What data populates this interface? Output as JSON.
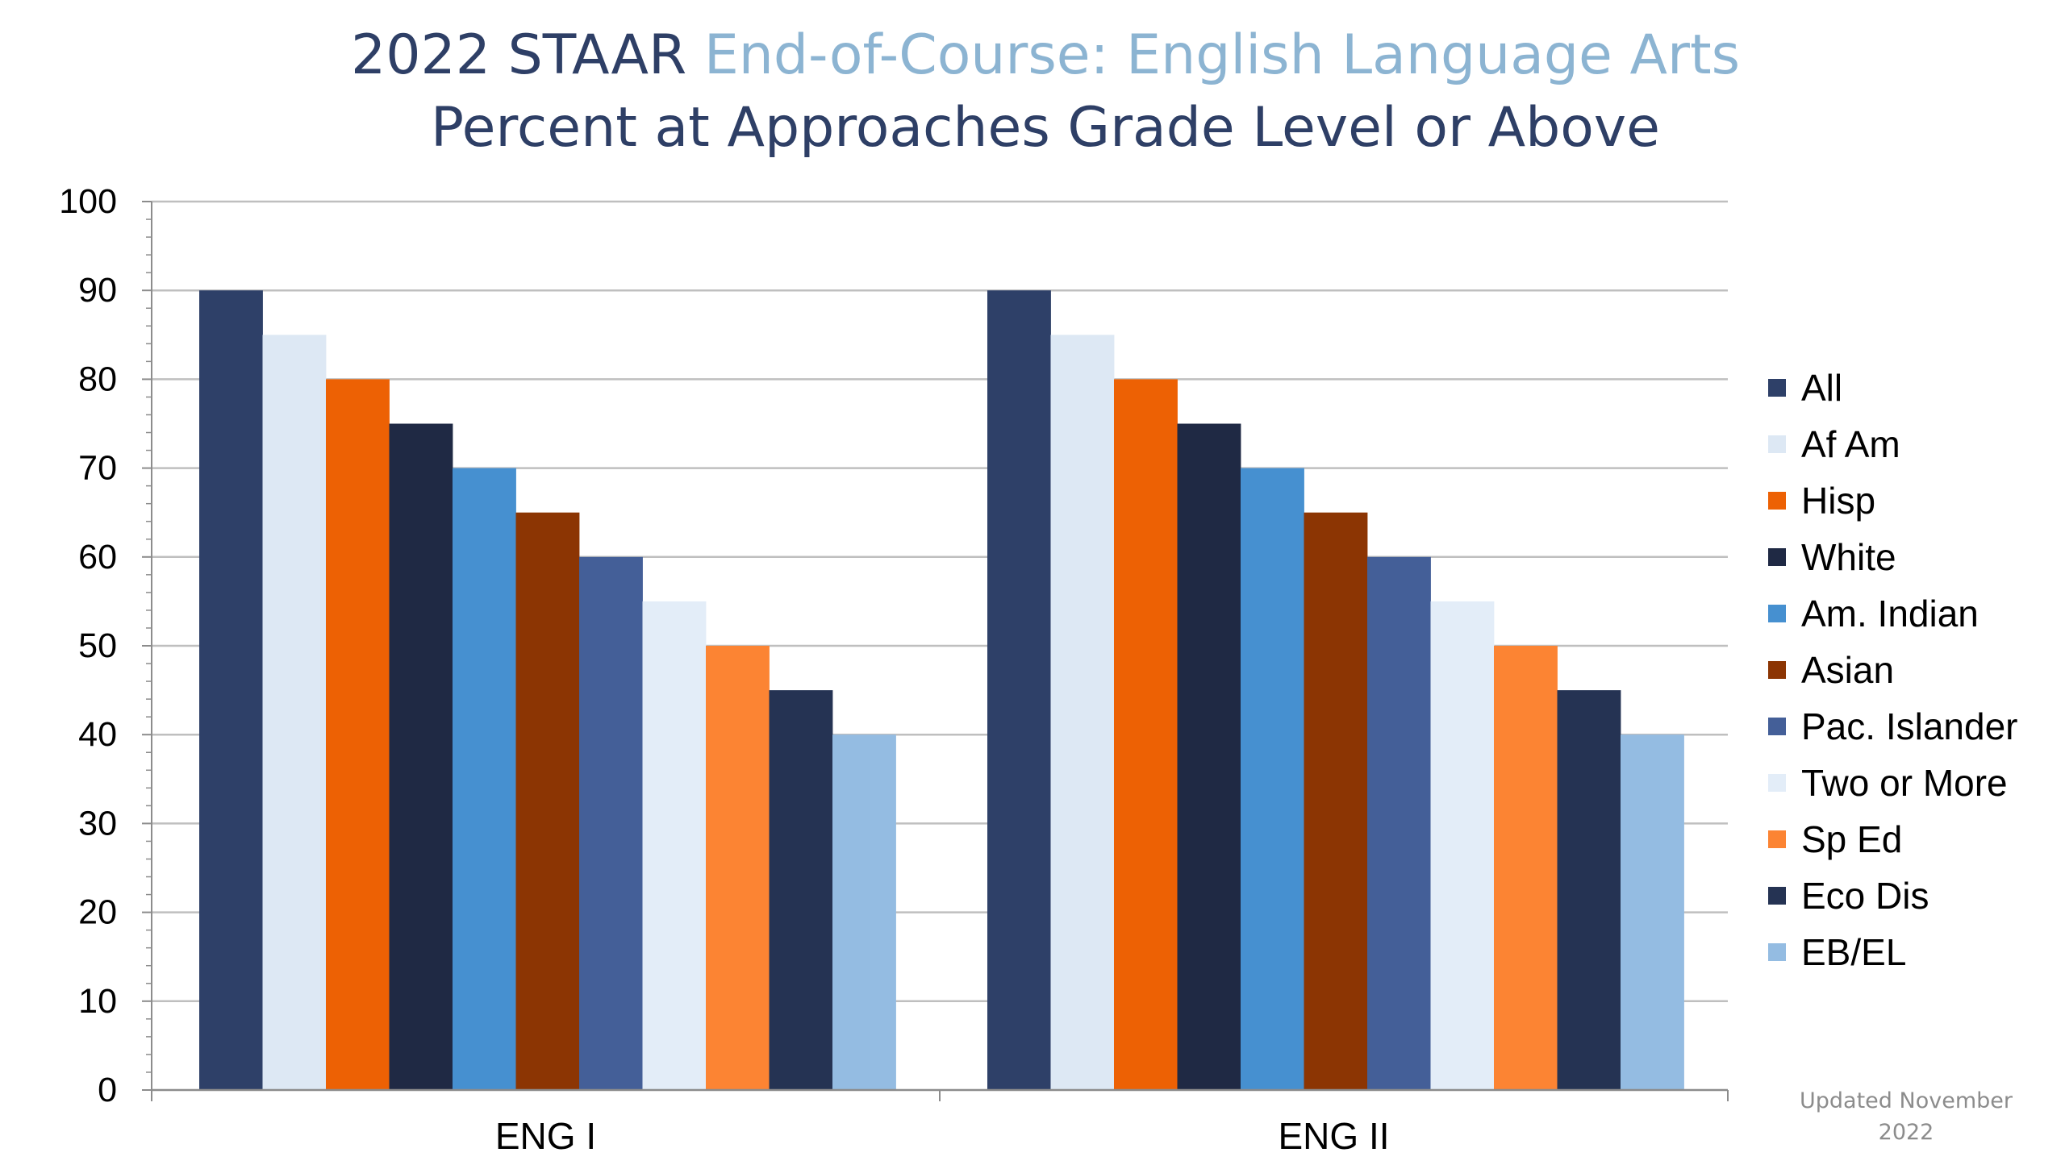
{
  "chart_data": {
    "type": "bar",
    "title_part1": "2022 STAAR ",
    "title_part2": "End-of-Course: English Language Arts",
    "subtitle": "Percent at Approaches Grade Level or Above",
    "xlabel": "",
    "ylabel": "",
    "ylim": [
      0,
      100
    ],
    "yticks": [
      "0",
      "10",
      "20",
      "30",
      "40",
      "50",
      "60",
      "70",
      "80",
      "90",
      "100"
    ],
    "grid": true,
    "legend_position": "right",
    "categories": [
      "ENG I",
      "ENG II"
    ],
    "series": [
      {
        "name": "All",
        "color": "#2e4068",
        "values": [
          90,
          90
        ]
      },
      {
        "name": "Af Am",
        "color": "#dde8f4",
        "values": [
          85,
          85
        ]
      },
      {
        "name": "Hisp",
        "color": "#ed6104",
        "values": [
          80,
          80
        ]
      },
      {
        "name": "White",
        "color": "#1f2944",
        "values": [
          75,
          75
        ]
      },
      {
        "name": "Am. Indian",
        "color": "#4690d0",
        "values": [
          70,
          70
        ]
      },
      {
        "name": "Asian",
        "color": "#8c3503",
        "values": [
          65,
          65
        ]
      },
      {
        "name": "Pac. Islander",
        "color": "#445f98",
        "values": [
          60,
          60
        ]
      },
      {
        "name": "Two or More",
        "color": "#e3edf8",
        "values": [
          55,
          55
        ]
      },
      {
        "name": "Sp Ed",
        "color": "#fc8433",
        "values": [
          50,
          50
        ]
      },
      {
        "name": "Eco Dis",
        "color": "#253353",
        "values": [
          45,
          45
        ]
      },
      {
        "name": "EB/EL",
        "color": "#94bce2",
        "values": [
          40,
          40
        ]
      }
    ],
    "colors": {
      "title_dark": "#2e3f66",
      "title_light": "#8cb4d2",
      "gridline": "#bfbfbf",
      "axis": "#8c8c8c",
      "note": "#8c8c8c"
    }
  },
  "footnote": {
    "line1": "Updated November",
    "line2": "2022"
  }
}
